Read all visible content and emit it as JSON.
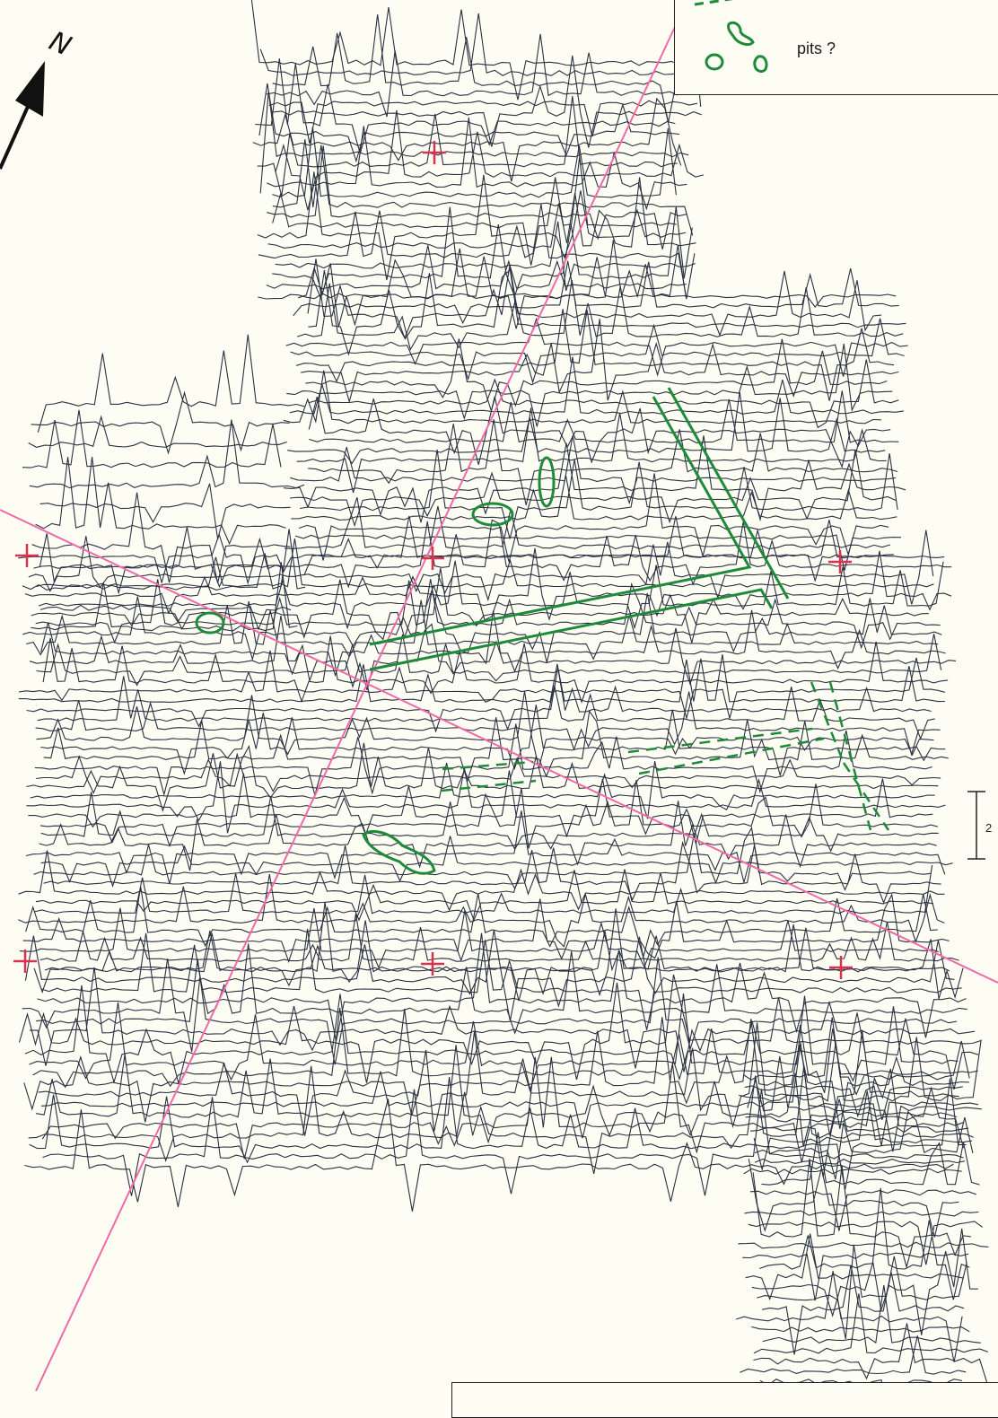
{
  "north_arrow": {
    "label": "N",
    "icon": "north-arrow-icon"
  },
  "legend": {
    "items": [
      {
        "icon": "dashed-line-icon",
        "label": ""
      },
      {
        "icon": "pit-outline-icon",
        "label": "pits ?"
      }
    ]
  },
  "scale_bar": {
    "label": "2"
  },
  "colors": {
    "background": "#fdfdf4",
    "traces": "#2a3140",
    "grid_lines": "#f06aa8",
    "grid_markers": "#d8324e",
    "features": "#1f8a3a"
  },
  "trace_plot": {
    "description_visible": false,
    "rows": 64
  }
}
